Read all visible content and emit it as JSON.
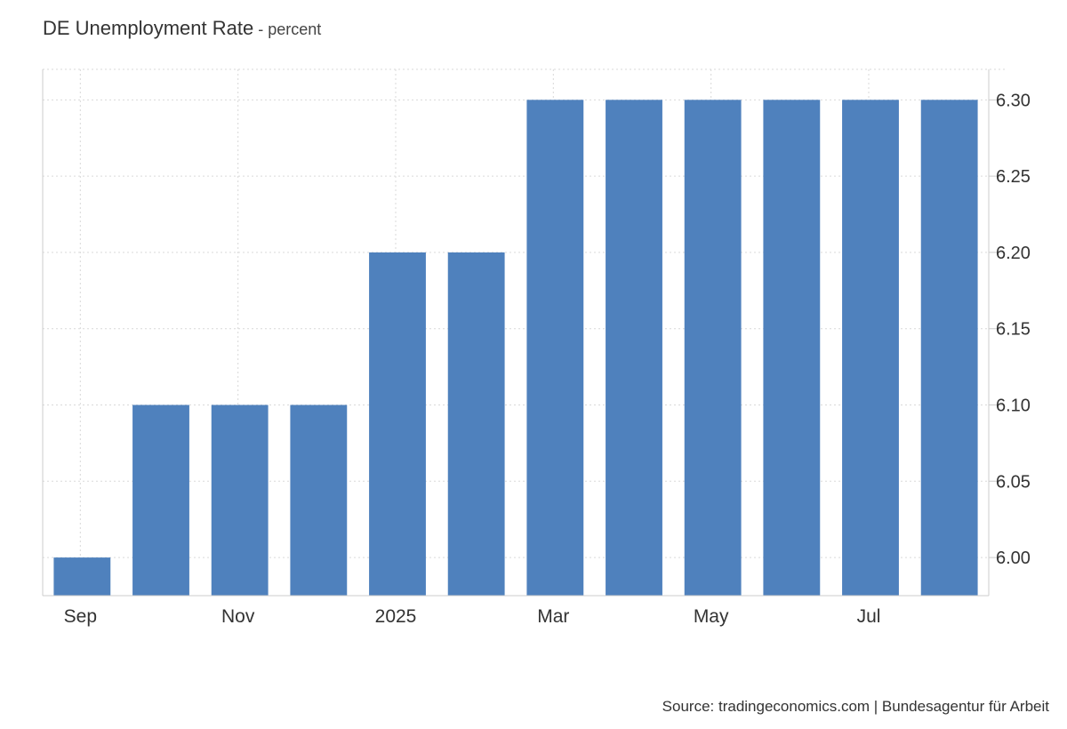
{
  "header": {
    "title": "DE Unemployment Rate",
    "separator": " - ",
    "unit": "percent"
  },
  "footer": {
    "source": "Source: tradingeconomics.com | Bundesagentur für Arbeit"
  },
  "colors": {
    "bar": "#4f81bd",
    "grid": "#d9d9d9",
    "axis": "#cccccc",
    "text": "#333333"
  },
  "chart_data": {
    "type": "bar",
    "title": "DE Unemployment Rate - percent",
    "categories": [
      "Sep 2024",
      "Oct 2024",
      "Nov 2024",
      "Dec 2024",
      "Jan 2025",
      "Feb 2025",
      "Mar 2025",
      "Apr 2025",
      "May 2025",
      "Jun 2025",
      "Jul 2025",
      "Aug 2025"
    ],
    "x_tick_labels": [
      "Sep",
      "Nov",
      "2025",
      "Mar",
      "May",
      "Jul"
    ],
    "series": [
      {
        "values": [
          6.0,
          6.1,
          6.1,
          6.1,
          6.2,
          6.2,
          6.3,
          6.3,
          6.3,
          6.3,
          6.3,
          6.3
        ]
      }
    ],
    "y_ticks": [
      "6.00",
      "6.05",
      "6.10",
      "6.15",
      "6.20",
      "6.25",
      "6.30"
    ],
    "ylim": [
      5.975,
      6.32
    ],
    "y_axis_side": "right",
    "grid": true,
    "grid_style": "dotted",
    "legend": "none"
  }
}
